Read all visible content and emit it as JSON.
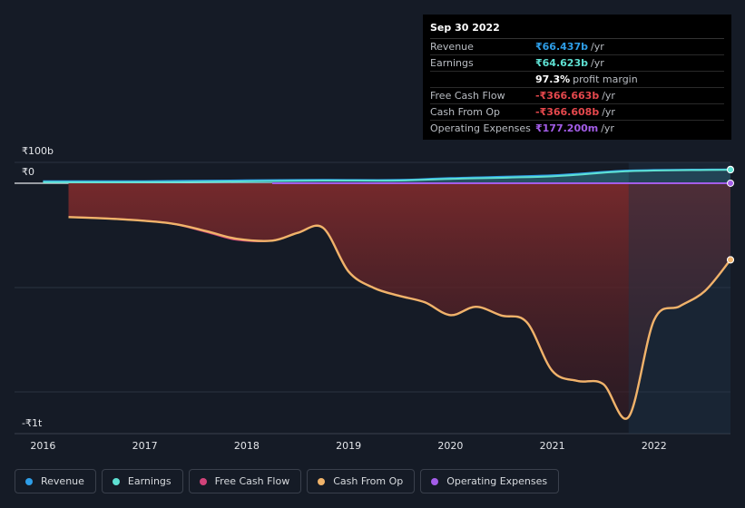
{
  "tooltip": {
    "date": "Sep 30 2022",
    "rows": [
      {
        "label": "Revenue",
        "value": "₹66.437b",
        "unit": "/yr",
        "color": "#2e9ee8"
      },
      {
        "label": "Earnings",
        "value": "₹64.623b",
        "unit": "/yr",
        "color": "#5ee0d2"
      },
      {
        "label": "",
        "value": "97.3%",
        "unit": "profit margin",
        "color": "#ffffff"
      },
      {
        "label": "Free Cash Flow",
        "value": "-₹366.663b",
        "unit": "/yr",
        "color": "#e5484d"
      },
      {
        "label": "Cash From Op",
        "value": "-₹366.608b",
        "unit": "/yr",
        "color": "#e5484d"
      },
      {
        "label": "Operating Expenses",
        "value": "₹177.200m",
        "unit": "/yr",
        "color": "#a35de8"
      }
    ]
  },
  "legend": [
    {
      "label": "Revenue",
      "color": "#2e9ee8"
    },
    {
      "label": "Earnings",
      "color": "#5ee0d2"
    },
    {
      "label": "Free Cash Flow",
      "color": "#d1437a"
    },
    {
      "label": "Cash From Op",
      "color": "#f0b36a"
    },
    {
      "label": "Operating Expenses",
      "color": "#a35de8"
    }
  ],
  "chart_data": {
    "type": "area",
    "y_tick_labels": {
      "top": "₹100b",
      "zero": "₹0",
      "bottom": "-₹1t"
    },
    "ylim": [
      -1200,
      100
    ],
    "x_ticks": [
      "2016",
      "2017",
      "2018",
      "2019",
      "2020",
      "2021",
      "2022"
    ],
    "x_tick_values": [
      2016,
      2017,
      2018,
      2019,
      2020,
      2021,
      2022
    ],
    "xlim": [
      2015.72,
      2022.75
    ],
    "grid": true,
    "highlight_start": 2021.75,
    "series": [
      {
        "name": "Revenue",
        "color": "#2e9ee8",
        "x": [
          2016.0,
          2017.0,
          2018.0,
          2018.75,
          2019.5,
          2020.0,
          2021.0,
          2021.75,
          2022.75
        ],
        "values": [
          10,
          10,
          14,
          16,
          16,
          25,
          38,
          61,
          66.4
        ]
      },
      {
        "name": "Earnings",
        "color": "#5ee0d2",
        "x": [
          2016.0,
          2017.0,
          2018.0,
          2018.75,
          2019.5,
          2020.0,
          2021.0,
          2021.75,
          2022.75
        ],
        "values": [
          5,
          5,
          9,
          13,
          13,
          21,
          33,
          58,
          64.6
        ]
      },
      {
        "name": "Operating Expenses",
        "color": "#a35de8",
        "x": [
          2018.25,
          2019.0,
          2020.0,
          2021.0,
          2022.0,
          2022.75
        ],
        "values": [
          0.2,
          0.2,
          0.2,
          0.2,
          0.2,
          0.18
        ]
      },
      {
        "name": "Free Cash Flow",
        "color": "#d1437a",
        "x": [
          2016.25,
          2016.75,
          2017.25,
          2017.6,
          2017.9,
          2018.25,
          2018.5,
          2018.75,
          2019.0,
          2019.25,
          2019.5,
          2019.75,
          2020.0,
          2020.25,
          2020.5,
          2020.75,
          2021.0,
          2021.25,
          2021.5,
          2021.75,
          2022.0,
          2022.25,
          2022.5,
          2022.75
        ],
        "values": [
          -162,
          -172,
          -192,
          -233,
          -271,
          -275,
          -238,
          -214,
          -423,
          -502,
          -540,
          -571,
          -632,
          -592,
          -634,
          -666,
          -899,
          -948,
          -962,
          -1120,
          -656,
          -590,
          -516,
          -367
        ]
      },
      {
        "name": "Cash From Op",
        "color": "#f0b36a",
        "x": [
          2016.25,
          2016.75,
          2017.25,
          2017.6,
          2017.9,
          2018.25,
          2018.5,
          2018.75,
          2019.0,
          2019.25,
          2019.5,
          2019.75,
          2020.0,
          2020.25,
          2020.5,
          2020.75,
          2021.0,
          2021.25,
          2021.5,
          2021.75,
          2022.0,
          2022.25,
          2022.5,
          2022.75
        ],
        "values": [
          -162,
          -172,
          -192,
          -229,
          -266,
          -275,
          -238,
          -214,
          -423,
          -502,
          -540,
          -571,
          -632,
          -592,
          -634,
          -666,
          -899,
          -948,
          -962,
          -1120,
          -656,
          -590,
          -516,
          -367
        ]
      }
    ]
  }
}
